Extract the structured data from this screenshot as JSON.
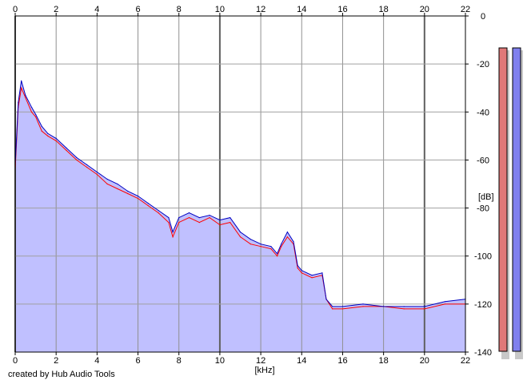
{
  "chart_data": {
    "type": "area",
    "title": "",
    "xlabel": "[kHz]",
    "ylabel": "[dB]",
    "xlim": [
      0,
      22
    ],
    "ylim": [
      -140,
      0
    ],
    "x_ticks": [
      0,
      2,
      4,
      6,
      8,
      10,
      12,
      14,
      16,
      18,
      20,
      22
    ],
    "y_ticks": [
      0,
      -20,
      -40,
      -60,
      -80,
      -100,
      -120,
      -140
    ],
    "grid": true,
    "fill_color": "#c0c0ff",
    "series": [
      {
        "color": "#ff0000",
        "points": [
          [
            0.0,
            -64
          ],
          [
            0.15,
            -38
          ],
          [
            0.3,
            -30
          ],
          [
            0.5,
            -34
          ],
          [
            0.8,
            -40
          ],
          [
            1.0,
            -42
          ],
          [
            1.3,
            -48
          ],
          [
            1.6,
            -50
          ],
          [
            2.0,
            -52
          ],
          [
            2.5,
            -56
          ],
          [
            3.0,
            -60
          ],
          [
            3.5,
            -63
          ],
          [
            4.0,
            -66
          ],
          [
            4.5,
            -70
          ],
          [
            5.0,
            -72
          ],
          [
            5.5,
            -74
          ],
          [
            6.0,
            -76
          ],
          [
            6.5,
            -79
          ],
          [
            7.0,
            -82
          ],
          [
            7.5,
            -86
          ],
          [
            7.7,
            -92
          ],
          [
            8.0,
            -86
          ],
          [
            8.5,
            -84
          ],
          [
            9.0,
            -86
          ],
          [
            9.5,
            -84
          ],
          [
            10.0,
            -87
          ],
          [
            10.5,
            -86
          ],
          [
            11.0,
            -92
          ],
          [
            11.5,
            -95
          ],
          [
            12.0,
            -96
          ],
          [
            12.5,
            -97
          ],
          [
            12.8,
            -100
          ],
          [
            13.0,
            -96
          ],
          [
            13.3,
            -92
          ],
          [
            13.6,
            -95
          ],
          [
            13.8,
            -105
          ],
          [
            14.0,
            -107
          ],
          [
            14.5,
            -109
          ],
          [
            15.0,
            -108
          ],
          [
            15.2,
            -118
          ],
          [
            15.5,
            -122
          ],
          [
            16.0,
            -122
          ],
          [
            17.0,
            -121
          ],
          [
            18.0,
            -121
          ],
          [
            19.0,
            -122
          ],
          [
            20.0,
            -122
          ],
          [
            21.0,
            -120
          ],
          [
            22.0,
            -120
          ]
        ]
      },
      {
        "color": "#0000c0",
        "points": [
          [
            0.0,
            -62
          ],
          [
            0.15,
            -36
          ],
          [
            0.3,
            -27
          ],
          [
            0.5,
            -33
          ],
          [
            0.8,
            -38
          ],
          [
            1.0,
            -41
          ],
          [
            1.3,
            -46
          ],
          [
            1.6,
            -49
          ],
          [
            2.0,
            -51
          ],
          [
            2.5,
            -55
          ],
          [
            3.0,
            -59
          ],
          [
            3.5,
            -62
          ],
          [
            4.0,
            -65
          ],
          [
            4.5,
            -68
          ],
          [
            5.0,
            -70
          ],
          [
            5.5,
            -73
          ],
          [
            6.0,
            -75
          ],
          [
            6.5,
            -78
          ],
          [
            7.0,
            -81
          ],
          [
            7.5,
            -84
          ],
          [
            7.7,
            -90
          ],
          [
            8.0,
            -84
          ],
          [
            8.5,
            -82
          ],
          [
            9.0,
            -84
          ],
          [
            9.5,
            -83
          ],
          [
            10.0,
            -85
          ],
          [
            10.5,
            -84
          ],
          [
            11.0,
            -90
          ],
          [
            11.5,
            -93
          ],
          [
            12.0,
            -95
          ],
          [
            12.5,
            -96
          ],
          [
            12.8,
            -99
          ],
          [
            13.0,
            -95
          ],
          [
            13.3,
            -90
          ],
          [
            13.6,
            -94
          ],
          [
            13.8,
            -104
          ],
          [
            14.0,
            -106
          ],
          [
            14.5,
            -108
          ],
          [
            15.0,
            -107
          ],
          [
            15.2,
            -118
          ],
          [
            15.5,
            -121
          ],
          [
            16.0,
            -121
          ],
          [
            17.0,
            -120
          ],
          [
            18.0,
            -121
          ],
          [
            19.0,
            -121
          ],
          [
            20.0,
            -121
          ],
          [
            21.0,
            -119
          ],
          [
            22.0,
            -118
          ]
        ]
      }
    ]
  },
  "credit_text": "created by Hub Audio Tools"
}
